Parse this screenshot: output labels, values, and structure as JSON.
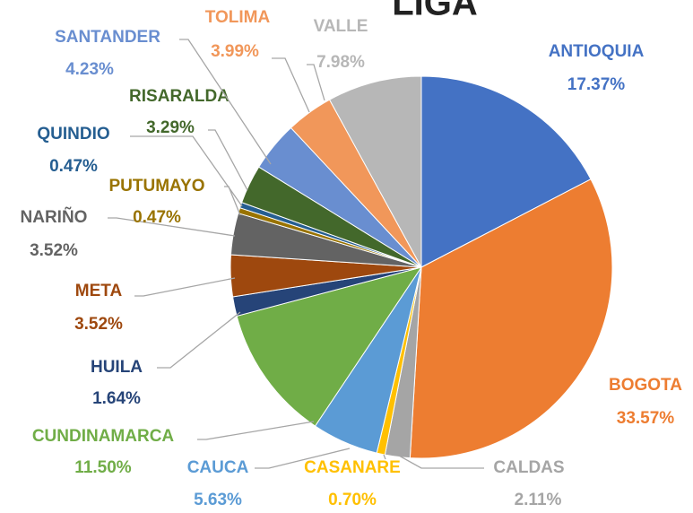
{
  "chart_data": {
    "type": "pie",
    "title": "LIGA",
    "categories": [
      "ANTIOQUIA",
      "BOGOTA",
      "CALDAS",
      "CASANARE",
      "CAUCA",
      "CUNDINAMARCA",
      "HUILA",
      "META",
      "NARIÑO",
      "PUTUMAYO",
      "QUINDIO",
      "RISARALDA",
      "SANTANDER",
      "TOLIMA",
      "VALLE"
    ],
    "values": [
      17.37,
      33.57,
      2.11,
      0.7,
      5.63,
      11.5,
      1.64,
      3.52,
      3.52,
      0.47,
      0.47,
      3.29,
      4.23,
      3.99,
      7.98
    ],
    "value_labels": [
      "17.37%",
      "33.57%",
      "2.11%",
      "0.70%",
      "5.63%",
      "11.50%",
      "1.64%",
      "3.52%",
      "3.52%",
      "0.47%",
      "0.47%",
      "3.29%",
      "4.23%",
      "3.99%",
      "7.98%"
    ],
    "colors": [
      "#4472c4",
      "#ed7d31",
      "#a5a5a5",
      "#ffc000",
      "#5b9bd5",
      "#70ad47",
      "#264478",
      "#9e480e",
      "#636363",
      "#997300",
      "#255e91",
      "#43682b",
      "#698ed0",
      "#f1975a",
      "#b7b7b7"
    ]
  }
}
